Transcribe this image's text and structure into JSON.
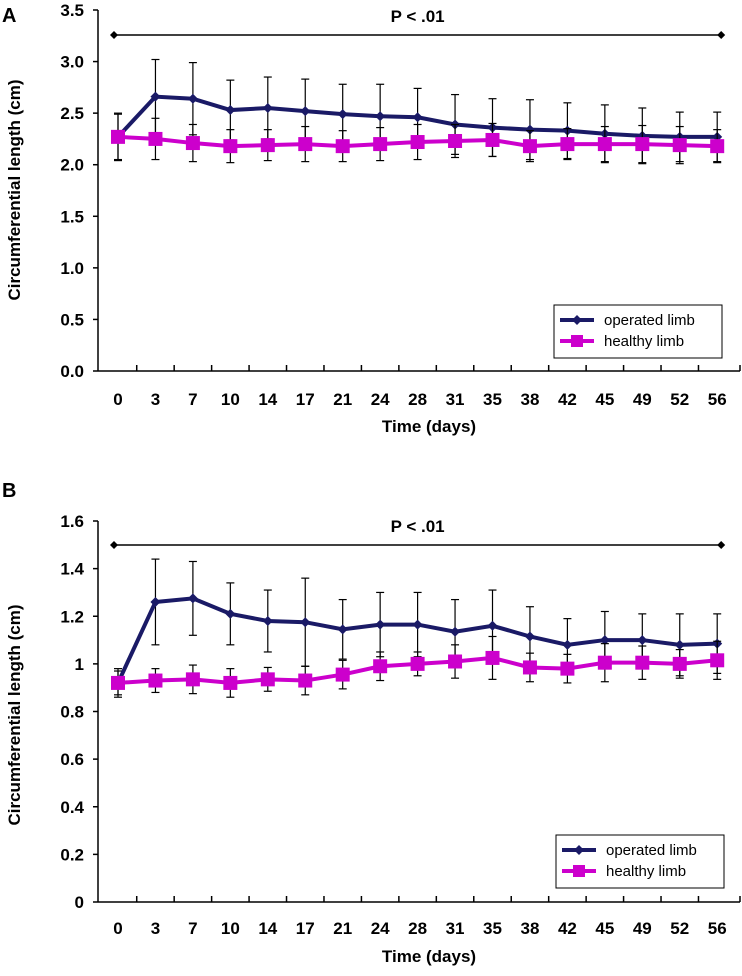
{
  "chart_data": [
    {
      "type": "line",
      "panel": "A",
      "annotation": "P < .01",
      "xlabel": "Time (days)",
      "ylabel": "Circumferential length (cm)",
      "x": [
        0,
        3,
        7,
        10,
        14,
        17,
        21,
        24,
        28,
        31,
        35,
        38,
        42,
        45,
        49,
        52,
        56
      ],
      "x_tick_labels": [
        "0",
        "3",
        "7",
        "10",
        "14",
        "17",
        "21",
        "24",
        "28",
        "31",
        "35",
        "38",
        "42",
        "45",
        "49",
        "52",
        "56"
      ],
      "ylim": [
        0,
        3.5
      ],
      "y_ticks": [
        "0.0",
        "0.5",
        "1.0",
        "1.5",
        "2.0",
        "2.5",
        "3.0",
        "3.5"
      ],
      "y_tick_values": [
        0,
        0.5,
        1,
        1.5,
        2,
        2.5,
        3,
        3.5
      ],
      "legend": "bottom-right",
      "series": [
        {
          "name": "operated limb",
          "color": "#1a1a66",
          "marker": "diamond",
          "values": [
            2.27,
            2.66,
            2.64,
            2.53,
            2.55,
            2.52,
            2.49,
            2.47,
            2.46,
            2.39,
            2.36,
            2.34,
            2.33,
            2.3,
            2.28,
            2.27,
            2.27
          ],
          "sd": [
            0.23,
            0.36,
            0.35,
            0.29,
            0.3,
            0.31,
            0.29,
            0.31,
            0.28,
            0.29,
            0.28,
            0.29,
            0.27,
            0.28,
            0.27,
            0.24,
            0.24
          ]
        },
        {
          "name": "healthy limb",
          "color": "#cc00cc",
          "marker": "square",
          "values": [
            2.27,
            2.25,
            2.21,
            2.18,
            2.19,
            2.2,
            2.18,
            2.2,
            2.22,
            2.23,
            2.24,
            2.18,
            2.2,
            2.2,
            2.2,
            2.19,
            2.18
          ],
          "sd": [
            0.22,
            0.2,
            0.18,
            0.16,
            0.15,
            0.17,
            0.15,
            0.16,
            0.17,
            0.16,
            0.16,
            0.15,
            0.15,
            0.17,
            0.18,
            0.18,
            0.16
          ]
        }
      ]
    },
    {
      "type": "line",
      "panel": "B",
      "annotation": "P < .01",
      "xlabel": "Time (days)",
      "ylabel": "Circumferential length (cm)",
      "x": [
        0,
        3,
        7,
        10,
        14,
        17,
        21,
        24,
        28,
        31,
        35,
        38,
        42,
        45,
        49,
        52,
        56
      ],
      "x_tick_labels": [
        "0",
        "3",
        "7",
        "10",
        "14",
        "17",
        "21",
        "24",
        "28",
        "31",
        "35",
        "38",
        "42",
        "45",
        "49",
        "52",
        "56"
      ],
      "ylim": [
        0,
        1.6
      ],
      "y_ticks": [
        "0",
        "0.2",
        "0.4",
        "0.6",
        "0.8",
        "1",
        "1.2",
        "1.4",
        "1.6"
      ],
      "y_tick_values": [
        0,
        0.2,
        0.4,
        0.6,
        0.8,
        1,
        1.2,
        1.4,
        1.6
      ],
      "legend": "bottom-right",
      "series": [
        {
          "name": "operated limb",
          "color": "#1a1a66",
          "marker": "diamond",
          "values": [
            0.92,
            1.26,
            1.275,
            1.21,
            1.18,
            1.175,
            1.145,
            1.165,
            1.165,
            1.135,
            1.16,
            1.115,
            1.08,
            1.1,
            1.1,
            1.08,
            1.085
          ],
          "sd": [
            0.05,
            0.18,
            0.155,
            0.13,
            0.13,
            0.185,
            0.125,
            0.135,
            0.135,
            0.135,
            0.15,
            0.125,
            0.11,
            0.12,
            0.11,
            0.13,
            0.125
          ]
        },
        {
          "name": "healthy limb",
          "color": "#cc00cc",
          "marker": "square",
          "values": [
            0.92,
            0.93,
            0.935,
            0.92,
            0.935,
            0.93,
            0.955,
            0.99,
            1.0,
            1.01,
            1.025,
            0.985,
            0.98,
            1.005,
            1.005,
            1.0,
            1.015
          ],
          "sd": [
            0.06,
            0.05,
            0.06,
            0.06,
            0.05,
            0.06,
            0.06,
            0.06,
            0.05,
            0.07,
            0.09,
            0.06,
            0.06,
            0.08,
            0.07,
            0.06,
            0.08
          ]
        }
      ]
    }
  ]
}
